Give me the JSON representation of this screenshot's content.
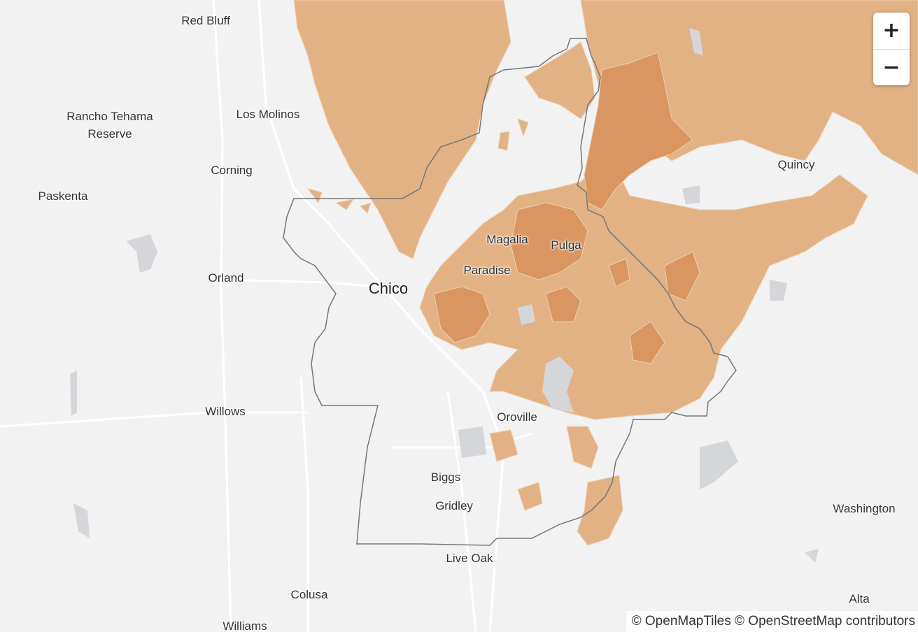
{
  "map": {
    "labels": {
      "red_bluff": "Red Bluff",
      "rancho_tehama": "Rancho Tehama",
      "rancho_tehama_2": "Reserve",
      "los_molinos": "Los Molinos",
      "corning": "Corning",
      "paskenta": "Paskenta",
      "orland": "Orland",
      "chico": "Chico",
      "magalia": "Magalia",
      "pulga": "Pulga",
      "paradise": "Paradise",
      "quincy": "Quincy",
      "oroville": "Oroville",
      "willows": "Willows",
      "biggs": "Biggs",
      "gridley": "Gridley",
      "live_oak": "Live Oak",
      "washington": "Washington",
      "colusa": "Colusa",
      "alta": "Alta",
      "williams": "Williams"
    },
    "colors": {
      "background": "#f2f2f2",
      "fire_light": "#e2b285",
      "fire_dark": "#d99660",
      "county_border": "#777777",
      "water": "#d4d6da",
      "roads": "#ffffff"
    }
  },
  "controls": {
    "zoom_in": "+",
    "zoom_out": "−"
  },
  "attribution": "© OpenMapTiles © OpenStreetMap contributors"
}
